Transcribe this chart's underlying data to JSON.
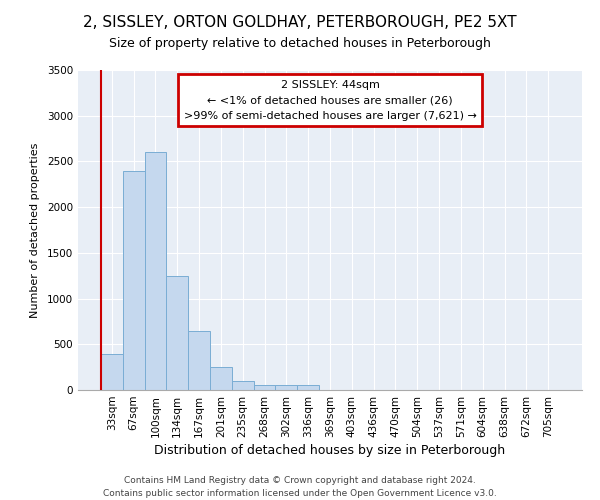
{
  "title": "2, SISSLEY, ORTON GOLDHAY, PETERBOROUGH, PE2 5XT",
  "subtitle": "Size of property relative to detached houses in Peterborough",
  "xlabel": "Distribution of detached houses by size in Peterborough",
  "ylabel": "Number of detached properties",
  "bar_color": "#c5d8ee",
  "bar_edge_color": "#7aadd4",
  "background_color": "#e8eef6",
  "annotation_line1": "2 SISSLEY: 44sqm",
  "annotation_line2": "← <1% of detached houses are smaller (26)",
  "annotation_line3": ">99% of semi-detached houses are larger (7,621) →",
  "annotation_box_color": "#cc0000",
  "property_line_color": "#cc0000",
  "footer_line1": "Contains HM Land Registry data © Crown copyright and database right 2024.",
  "footer_line2": "Contains public sector information licensed under the Open Government Licence v3.0.",
  "categories": [
    "33sqm",
    "67sqm",
    "100sqm",
    "134sqm",
    "167sqm",
    "201sqm",
    "235sqm",
    "268sqm",
    "302sqm",
    "336sqm",
    "369sqm",
    "403sqm",
    "436sqm",
    "470sqm",
    "504sqm",
    "537sqm",
    "571sqm",
    "604sqm",
    "638sqm",
    "672sqm",
    "705sqm"
  ],
  "values": [
    390,
    2400,
    2600,
    1250,
    640,
    250,
    100,
    60,
    55,
    50,
    0,
    0,
    0,
    0,
    0,
    0,
    0,
    0,
    0,
    0,
    0
  ],
  "ylim": [
    0,
    3500
  ],
  "yticks": [
    0,
    500,
    1000,
    1500,
    2000,
    2500,
    3000,
    3500
  ],
  "title_fontsize": 11,
  "subtitle_fontsize": 9,
  "tick_fontsize": 7.5,
  "ylabel_fontsize": 8,
  "xlabel_fontsize": 9
}
